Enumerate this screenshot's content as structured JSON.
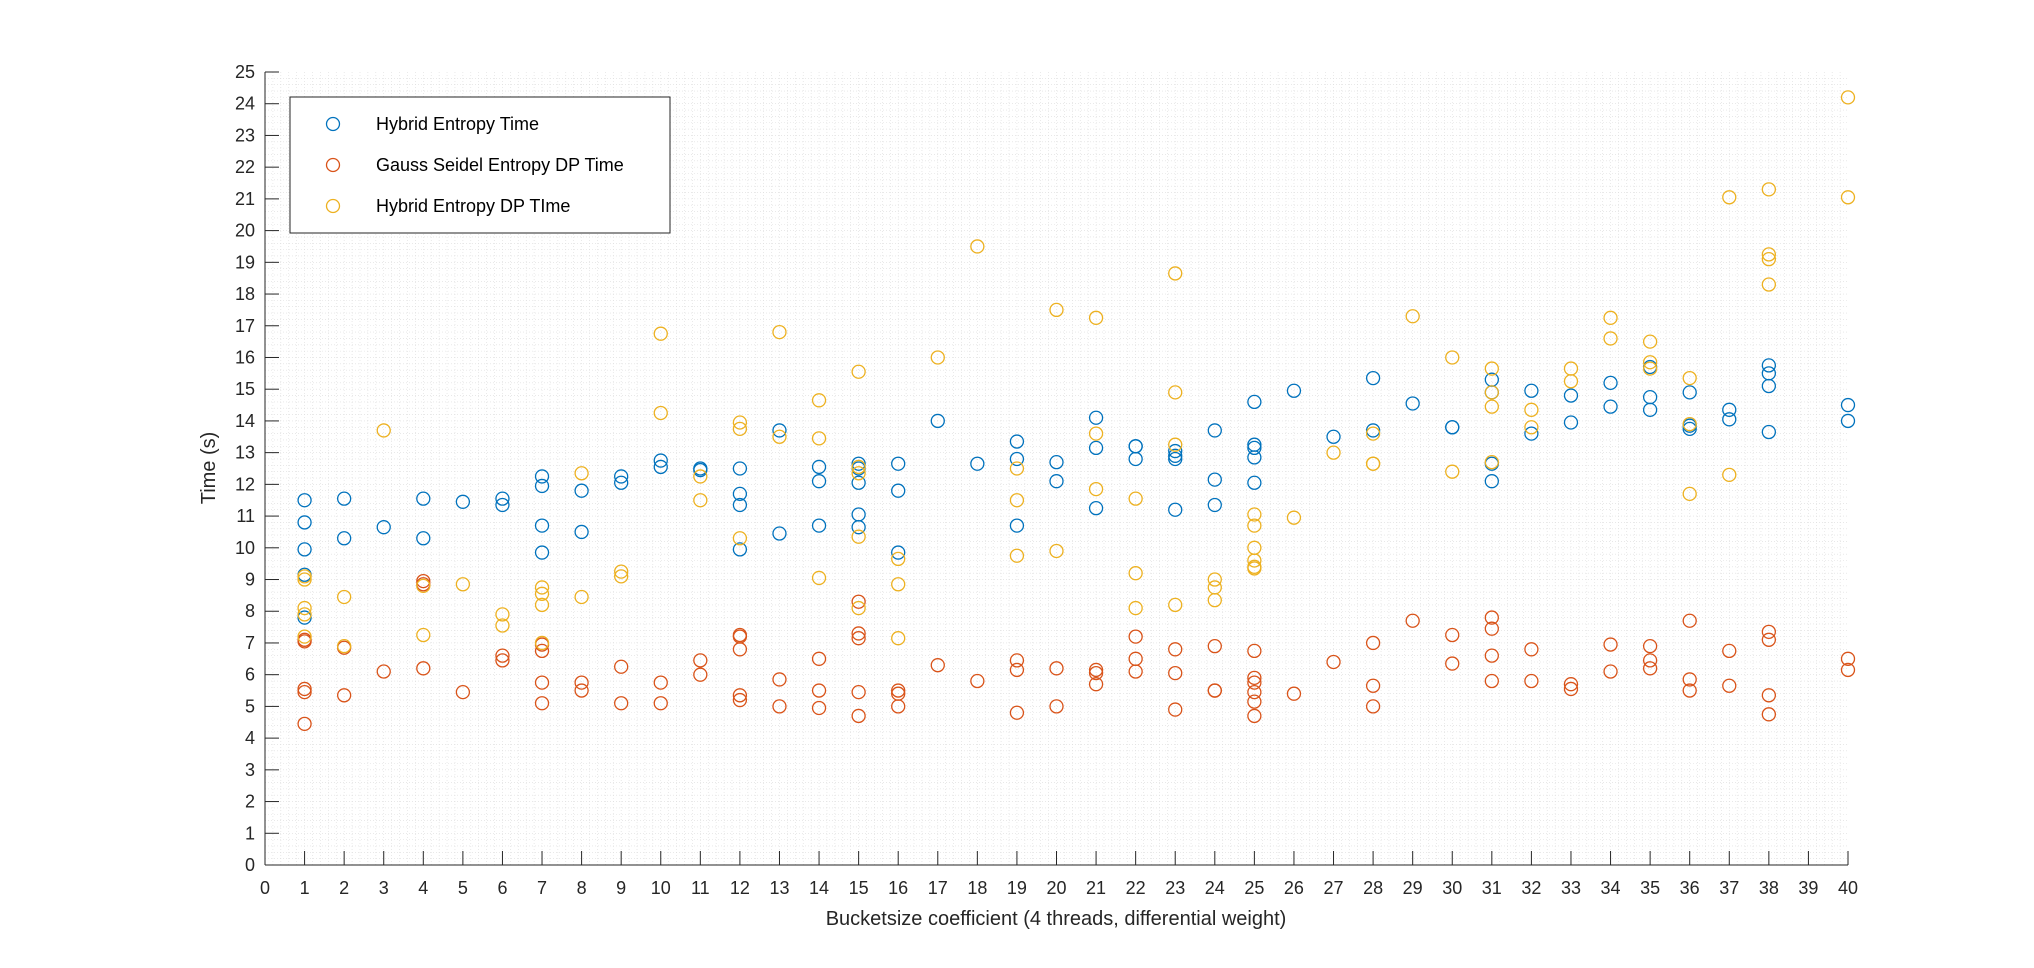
{
  "chart_data": {
    "type": "scatter",
    "xlabel": "Bucketsize coefficient (4 threads, differential weight)",
    "ylabel": "Time (s)",
    "xlim": [
      0,
      40
    ],
    "ylim": [
      0,
      25
    ],
    "xticks": [
      0,
      1,
      2,
      3,
      4,
      5,
      6,
      7,
      8,
      9,
      10,
      11,
      12,
      13,
      14,
      15,
      16,
      17,
      18,
      19,
      20,
      21,
      22,
      23,
      24,
      25,
      26,
      27,
      28,
      29,
      30,
      31,
      32,
      33,
      34,
      35,
      36,
      37,
      38,
      39,
      40
    ],
    "yticks": [
      0,
      1,
      2,
      3,
      4,
      5,
      6,
      7,
      8,
      9,
      10,
      11,
      12,
      13,
      14,
      15,
      16,
      17,
      18,
      19,
      20,
      21,
      22,
      23,
      24,
      25
    ],
    "grid": "minor",
    "legend_position": "top-left",
    "marker": "open-circle",
    "series": [
      {
        "name": "Hybrid Entropy Time",
        "color": "#0072BD",
        "points": [
          [
            1,
            11.5
          ],
          [
            1,
            10.8
          ],
          [
            1,
            9.95
          ],
          [
            1,
            9.15
          ],
          [
            1,
            7.8
          ],
          [
            2,
            11.55
          ],
          [
            2,
            10.3
          ],
          [
            3,
            10.65
          ],
          [
            4,
            11.55
          ],
          [
            4,
            10.3
          ],
          [
            5,
            11.45
          ],
          [
            6,
            11.55
          ],
          [
            6,
            11.35
          ],
          [
            7,
            12.25
          ],
          [
            7,
            11.95
          ],
          [
            7,
            10.7
          ],
          [
            7,
            9.85
          ],
          [
            8,
            11.8
          ],
          [
            8,
            10.5
          ],
          [
            9,
            12.25
          ],
          [
            9,
            12.05
          ],
          [
            10,
            12.75
          ],
          [
            10,
            12.55
          ],
          [
            11,
            12.5
          ],
          [
            11,
            12.45
          ],
          [
            12,
            12.5
          ],
          [
            12,
            11.7
          ],
          [
            12,
            11.35
          ],
          [
            12,
            9.95
          ],
          [
            13,
            13.7
          ],
          [
            13,
            10.45
          ],
          [
            14,
            12.55
          ],
          [
            14,
            12.1
          ],
          [
            14,
            10.7
          ],
          [
            15,
            12.65
          ],
          [
            15,
            12.5
          ],
          [
            15,
            12.05
          ],
          [
            15,
            11.05
          ],
          [
            15,
            10.65
          ],
          [
            16,
            12.65
          ],
          [
            16,
            11.8
          ],
          [
            16,
            9.85
          ],
          [
            17,
            14.0
          ],
          [
            18,
            12.65
          ],
          [
            19,
            13.35
          ],
          [
            19,
            12.8
          ],
          [
            19,
            10.7
          ],
          [
            20,
            12.7
          ],
          [
            20,
            12.1
          ],
          [
            21,
            14.1
          ],
          [
            21,
            13.15
          ],
          [
            21,
            11.25
          ],
          [
            22,
            13.2
          ],
          [
            22,
            13.2
          ],
          [
            22,
            12.8
          ],
          [
            23,
            13.05
          ],
          [
            23,
            12.9
          ],
          [
            23,
            12.8
          ],
          [
            23,
            11.2
          ],
          [
            24,
            13.7
          ],
          [
            24,
            12.15
          ],
          [
            24,
            11.35
          ],
          [
            25,
            14.6
          ],
          [
            25,
            13.25
          ],
          [
            25,
            13.15
          ],
          [
            25,
            12.85
          ],
          [
            25,
            12.05
          ],
          [
            26,
            14.95
          ],
          [
            27,
            13.5
          ],
          [
            28,
            15.35
          ],
          [
            28,
            13.7
          ],
          [
            29,
            14.55
          ],
          [
            30,
            13.8
          ],
          [
            30,
            13.8
          ],
          [
            31,
            15.3
          ],
          [
            31,
            14.9
          ],
          [
            31,
            12.65
          ],
          [
            31,
            12.1
          ],
          [
            32,
            14.95
          ],
          [
            32,
            13.6
          ],
          [
            33,
            14.8
          ],
          [
            33,
            13.95
          ],
          [
            34,
            15.2
          ],
          [
            34,
            14.45
          ],
          [
            35,
            15.7
          ],
          [
            35,
            14.75
          ],
          [
            35,
            14.35
          ],
          [
            36,
            14.9
          ],
          [
            36,
            13.85
          ],
          [
            36,
            13.75
          ],
          [
            37,
            14.35
          ],
          [
            37,
            14.05
          ],
          [
            38,
            15.75
          ],
          [
            38,
            15.5
          ],
          [
            38,
            15.1
          ],
          [
            38,
            13.65
          ],
          [
            40,
            14.5
          ],
          [
            40,
            14.0
          ]
        ]
      },
      {
        "name": "Gauss Seidel Entropy DP Time",
        "color": "#D95319",
        "points": [
          [
            1,
            7.1
          ],
          [
            1,
            7.05
          ],
          [
            1,
            5.55
          ],
          [
            1,
            5.45
          ],
          [
            1,
            4.45
          ],
          [
            2,
            6.85
          ],
          [
            2,
            5.35
          ],
          [
            3,
            6.1
          ],
          [
            4,
            8.95
          ],
          [
            4,
            8.85
          ],
          [
            4,
            6.2
          ],
          [
            5,
            5.45
          ],
          [
            6,
            6.6
          ],
          [
            6,
            6.45
          ],
          [
            7,
            6.95
          ],
          [
            7,
            6.75
          ],
          [
            7,
            5.75
          ],
          [
            7,
            5.1
          ],
          [
            8,
            5.75
          ],
          [
            8,
            5.5
          ],
          [
            9,
            6.25
          ],
          [
            9,
            5.1
          ],
          [
            10,
            5.75
          ],
          [
            10,
            5.1
          ],
          [
            11,
            6.45
          ],
          [
            11,
            6.0
          ],
          [
            12,
            7.25
          ],
          [
            12,
            7.2
          ],
          [
            12,
            6.8
          ],
          [
            12,
            5.35
          ],
          [
            12,
            5.2
          ],
          [
            13,
            5.85
          ],
          [
            13,
            5.0
          ],
          [
            14,
            6.5
          ],
          [
            14,
            5.5
          ],
          [
            14,
            4.95
          ],
          [
            15,
            8.3
          ],
          [
            15,
            7.3
          ],
          [
            15,
            7.15
          ],
          [
            15,
            5.45
          ],
          [
            15,
            4.7
          ],
          [
            16,
            5.5
          ],
          [
            16,
            5.4
          ],
          [
            16,
            5.0
          ],
          [
            17,
            6.3
          ],
          [
            18,
            5.8
          ],
          [
            19,
            6.45
          ],
          [
            19,
            6.15
          ],
          [
            19,
            4.8
          ],
          [
            20,
            6.2
          ],
          [
            20,
            5.0
          ],
          [
            21,
            6.15
          ],
          [
            21,
            6.05
          ],
          [
            21,
            5.7
          ],
          [
            22,
            7.2
          ],
          [
            22,
            6.5
          ],
          [
            22,
            6.1
          ],
          [
            23,
            6.8
          ],
          [
            23,
            6.05
          ],
          [
            23,
            4.9
          ],
          [
            24,
            6.9
          ],
          [
            24,
            5.5
          ],
          [
            24,
            5.5
          ],
          [
            25,
            6.75
          ],
          [
            25,
            5.9
          ],
          [
            25,
            5.75
          ],
          [
            25,
            5.45
          ],
          [
            25,
            5.15
          ],
          [
            25,
            4.7
          ],
          [
            26,
            5.4
          ],
          [
            27,
            6.4
          ],
          [
            28,
            7.0
          ],
          [
            28,
            5.65
          ],
          [
            28,
            5.0
          ],
          [
            29,
            7.7
          ],
          [
            30,
            7.25
          ],
          [
            30,
            6.35
          ],
          [
            31,
            7.8
          ],
          [
            31,
            7.45
          ],
          [
            31,
            6.6
          ],
          [
            31,
            5.8
          ],
          [
            32,
            6.8
          ],
          [
            32,
            5.8
          ],
          [
            33,
            5.7
          ],
          [
            33,
            5.55
          ],
          [
            34,
            6.95
          ],
          [
            34,
            6.1
          ],
          [
            35,
            6.9
          ],
          [
            35,
            6.45
          ],
          [
            35,
            6.2
          ],
          [
            36,
            7.7
          ],
          [
            36,
            5.85
          ],
          [
            36,
            5.5
          ],
          [
            37,
            6.75
          ],
          [
            37,
            5.65
          ],
          [
            38,
            7.35
          ],
          [
            38,
            7.1
          ],
          [
            38,
            5.35
          ],
          [
            38,
            4.75
          ],
          [
            40,
            6.5
          ],
          [
            40,
            6.15
          ]
        ]
      },
      {
        "name": "Hybrid Entropy DP TIme",
        "color": "#EDB120",
        "points": [
          [
            1,
            9.1
          ],
          [
            1,
            9.0
          ],
          [
            1,
            8.1
          ],
          [
            1,
            7.9
          ],
          [
            1,
            7.2
          ],
          [
            2,
            8.45
          ],
          [
            2,
            6.9
          ],
          [
            3,
            13.7
          ],
          [
            4,
            8.8
          ],
          [
            4,
            7.25
          ],
          [
            5,
            8.85
          ],
          [
            6,
            7.9
          ],
          [
            6,
            7.55
          ],
          [
            7,
            8.75
          ],
          [
            7,
            8.55
          ],
          [
            7,
            8.2
          ],
          [
            7,
            7.0
          ],
          [
            8,
            12.35
          ],
          [
            8,
            8.45
          ],
          [
            9,
            9.25
          ],
          [
            9,
            9.1
          ],
          [
            10,
            16.75
          ],
          [
            10,
            14.25
          ],
          [
            11,
            12.25
          ],
          [
            11,
            11.5
          ],
          [
            12,
            13.95
          ],
          [
            12,
            13.75
          ],
          [
            12,
            10.3
          ],
          [
            13,
            16.8
          ],
          [
            13,
            13.5
          ],
          [
            14,
            14.65
          ],
          [
            14,
            13.45
          ],
          [
            14,
            9.05
          ],
          [
            15,
            15.55
          ],
          [
            15,
            12.55
          ],
          [
            15,
            12.35
          ],
          [
            15,
            10.35
          ],
          [
            15,
            8.1
          ],
          [
            16,
            9.65
          ],
          [
            16,
            8.85
          ],
          [
            16,
            7.15
          ],
          [
            17,
            16.0
          ],
          [
            18,
            19.5
          ],
          [
            19,
            12.5
          ],
          [
            19,
            11.5
          ],
          [
            19,
            9.75
          ],
          [
            20,
            17.5
          ],
          [
            20,
            9.9
          ],
          [
            21,
            17.25
          ],
          [
            21,
            13.6
          ],
          [
            21,
            11.85
          ],
          [
            22,
            11.55
          ],
          [
            22,
            9.2
          ],
          [
            22,
            8.1
          ],
          [
            23,
            18.65
          ],
          [
            23,
            14.9
          ],
          [
            23,
            13.25
          ],
          [
            23,
            8.2
          ],
          [
            24,
            9.0
          ],
          [
            24,
            8.75
          ],
          [
            24,
            8.35
          ],
          [
            25,
            11.05
          ],
          [
            25,
            10.7
          ],
          [
            25,
            10.0
          ],
          [
            25,
            9.6
          ],
          [
            25,
            9.4
          ],
          [
            25,
            9.35
          ],
          [
            26,
            10.95
          ],
          [
            27,
            13.0
          ],
          [
            28,
            13.6
          ],
          [
            28,
            12.65
          ],
          [
            28,
            12.65
          ],
          [
            29,
            17.3
          ],
          [
            30,
            16.0
          ],
          [
            30,
            12.4
          ],
          [
            31,
            15.65
          ],
          [
            31,
            14.9
          ],
          [
            31,
            14.45
          ],
          [
            31,
            12.7
          ],
          [
            32,
            14.35
          ],
          [
            32,
            13.8
          ],
          [
            33,
            15.65
          ],
          [
            33,
            15.25
          ],
          [
            34,
            17.25
          ],
          [
            34,
            16.6
          ],
          [
            35,
            16.5
          ],
          [
            35,
            15.85
          ],
          [
            35,
            15.65
          ],
          [
            36,
            15.35
          ],
          [
            36,
            13.9
          ],
          [
            36,
            11.7
          ],
          [
            37,
            21.05
          ],
          [
            37,
            12.3
          ],
          [
            38,
            21.3
          ],
          [
            38,
            19.25
          ],
          [
            38,
            19.1
          ],
          [
            38,
            18.3
          ],
          [
            40,
            24.2
          ],
          [
            40,
            21.05
          ]
        ]
      }
    ]
  }
}
